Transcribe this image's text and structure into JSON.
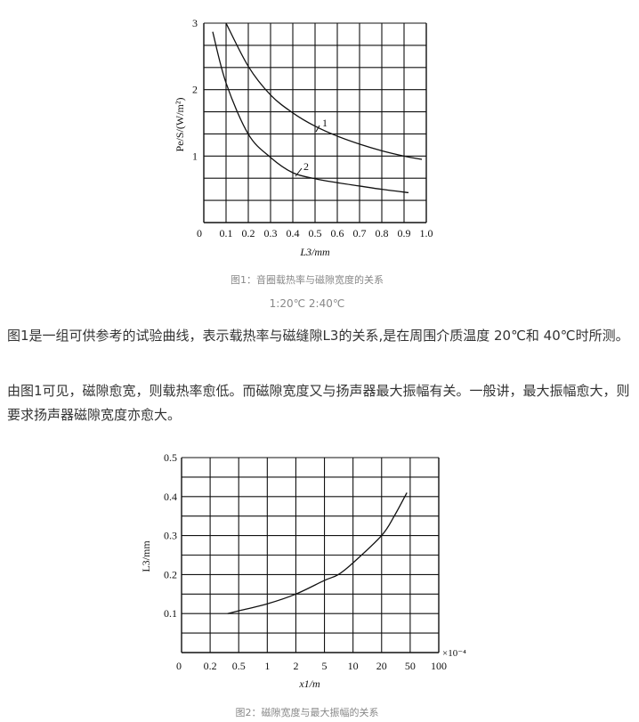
{
  "captions": {
    "fig1": "图1：音圈载热率与磁隙宽度的关系",
    "fig1_legend": "1:20℃  2:40℃",
    "fig2": "图2：磁隙宽度与最大振幅的关系"
  },
  "paragraphs": [
    "图1是一组可供参考的试验曲线，表示载热率与磁缝隙L3的关系,是在周围介质温度 20℃和 40℃时所测。",
    "由图1可见，磁隙愈宽，则载热率愈低。而磁隙宽度又与扬声器最大振幅有关。一般讲，最大振幅愈大，则要求扬声器磁隙宽度亦愈大。"
  ],
  "chart_data": [
    {
      "type": "line",
      "xlabel": "L3/mm",
      "ylabel": "Pe/S/(W/m²)",
      "xlim": [
        0,
        1.0
      ],
      "ylim": [
        0,
        3
      ],
      "grid": true,
      "x_ticks": [
        "0",
        "0.1",
        "0.2",
        "0.3",
        "0.4",
        "0.5",
        "0.6",
        "0.7",
        "0.8",
        "0.9",
        "1.0"
      ],
      "y_ticks": [
        "1",
        "2",
        "3"
      ],
      "series": [
        {
          "name": "1",
          "x": [
            0.1,
            0.2,
            0.3,
            0.4,
            0.5,
            0.6,
            0.7,
            0.8,
            0.9,
            0.98
          ],
          "y": [
            3.0,
            2.35,
            1.92,
            1.65,
            1.45,
            1.3,
            1.18,
            1.08,
            1.0,
            0.95
          ]
        },
        {
          "name": "2",
          "x": [
            0.04,
            0.1,
            0.2,
            0.3,
            0.4,
            0.5,
            0.6,
            0.7,
            0.8,
            0.92
          ],
          "y": [
            2.87,
            2.1,
            1.33,
            0.98,
            0.75,
            0.66,
            0.6,
            0.55,
            0.5,
            0.45
          ]
        }
      ]
    },
    {
      "type": "line",
      "xlabel": "x1/m",
      "ylabel": "L3/mm",
      "x_scale_note": "×10⁻⁴",
      "x_ticks": [
        "0",
        "0.2",
        "0.5",
        "1",
        "2",
        "5",
        "10",
        "20",
        "50",
        "100"
      ],
      "y_ticks": [
        "0.1",
        "0.2",
        "0.3",
        "0.4",
        "0.5"
      ],
      "ylim": [
        0,
        0.5
      ],
      "grid": true,
      "series": [
        {
          "x": [
            0.35,
            0.5,
            1,
            2,
            5,
            7,
            10,
            20,
            30,
            45
          ],
          "y": [
            0.1,
            0.107,
            0.125,
            0.15,
            0.185,
            0.2,
            0.23,
            0.3,
            0.35,
            0.41
          ]
        }
      ]
    }
  ]
}
